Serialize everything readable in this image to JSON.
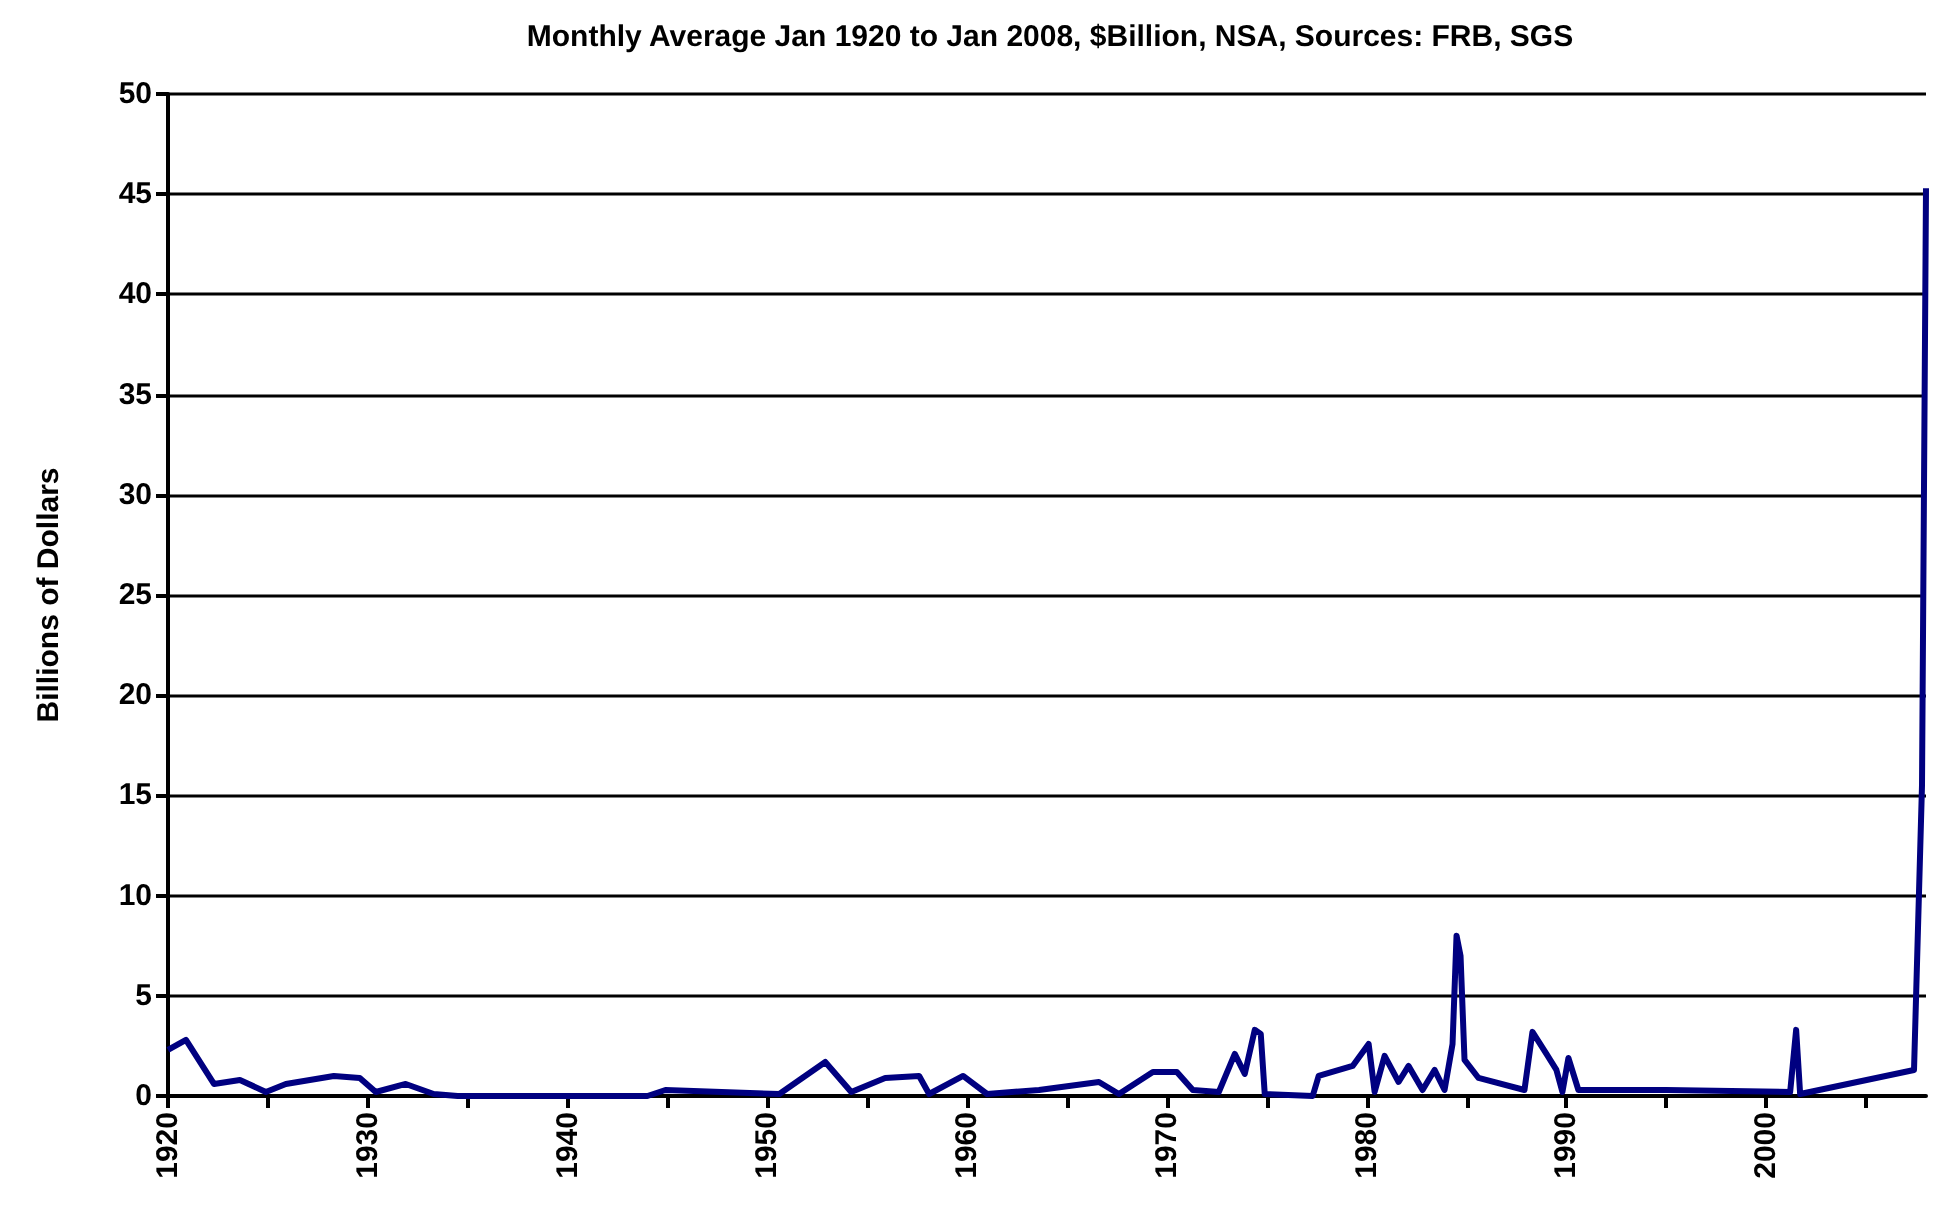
{
  "chart_data": {
    "type": "line",
    "title": "Monthly Average Jan 1920 to Jan 2008, $Billion, NSA, Sources: FRB, SGS",
    "ylabel": "Billions of Dollars",
    "x": [
      1920.0,
      1920.9,
      1922.3,
      1923.6,
      1924.9,
      1925.9,
      1928.3,
      1929.6,
      1930.4,
      1931.9,
      1933.3,
      1934.5,
      1944.0,
      1944.9,
      1950.6,
      1952.9,
      1954.2,
      1955.9,
      1957.6,
      1958.1,
      1959.8,
      1961.0,
      1963.6,
      1966.6,
      1967.6,
      1969.3,
      1970.5,
      1971.3,
      1972.6,
      1973.4,
      1973.9,
      1974.4,
      1974.7,
      1974.9,
      1977.3,
      1977.6,
      1979.3,
      1980.1,
      1980.4,
      1980.9,
      1981.6,
      1982.1,
      1982.8,
      1983.4,
      1983.9,
      1984.3,
      1984.5,
      1984.7,
      1984.9,
      1985.6,
      1987.9,
      1988.3,
      1989.0,
      1989.5,
      1989.8,
      1990.1,
      1990.6,
      1995.0,
      2001.2,
      2001.5,
      2001.7,
      2007.4,
      2007.8,
      2008.0
    ],
    "series": [
      {
        "color": "#000080",
        "values": [
          2.3,
          2.8,
          0.6,
          0.8,
          0.2,
          0.6,
          1.0,
          0.9,
          0.2,
          0.6,
          0.1,
          0,
          0,
          0.3,
          0.1,
          1.7,
          0.2,
          0.9,
          1.0,
          0.1,
          1.0,
          0.1,
          0.3,
          0.7,
          0.1,
          1.2,
          1.2,
          0.3,
          0.2,
          2.1,
          1.1,
          3.3,
          3.1,
          0.1,
          0,
          1.0,
          1.5,
          2.6,
          0.2,
          2.0,
          0.7,
          1.5,
          0.3,
          1.3,
          0.3,
          2.6,
          8.0,
          7.0,
          1.8,
          0.9,
          0.3,
          3.2,
          2.1,
          1.3,
          0.2,
          1.9,
          0.3,
          0.3,
          0.2,
          3.3,
          0.1,
          1.3,
          15.5,
          45.3
        ]
      }
    ],
    "xlim": [
      1920,
      2008
    ],
    "xticks": [
      1920,
      {
        "value": 1925,
        "label": null
      },
      1930,
      {
        "value": 1935,
        "label": null
      },
      1940,
      {
        "value": 1945,
        "label": null
      },
      1950,
      {
        "value": 1955,
        "label": null
      },
      1960,
      {
        "value": 1965,
        "label": null
      },
      1970,
      {
        "value": 1975,
        "label": null
      },
      1980,
      {
        "value": 1985,
        "label": null
      },
      1990,
      {
        "value": 1995,
        "label": null
      },
      2000,
      {
        "value": 2005,
        "label": null
      }
    ],
    "ylim": [
      0,
      50
    ],
    "yticks": [
      0,
      5,
      10,
      15,
      20,
      25,
      30,
      35,
      40,
      45,
      50
    ],
    "grid": "y",
    "marker": "none",
    "line_style": "solid"
  }
}
